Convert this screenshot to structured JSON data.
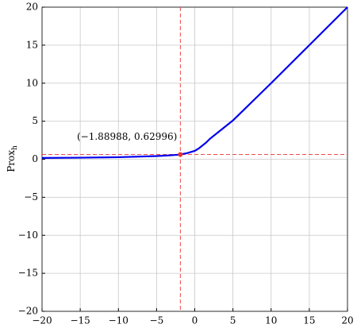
{
  "chart_data": {
    "type": "line",
    "ylabel": "Prox",
    "ylabel_subscript": "h",
    "x": [
      -20,
      -15,
      -10,
      -5,
      -4,
      -3,
      -2,
      -1,
      0,
      0.5,
      1,
      1.5,
      2,
      3,
      5,
      10,
      15,
      20
    ],
    "series": [
      {
        "color": "#0000ee",
        "values": [
          0.17,
          0.2,
          0.27,
          0.42,
          0.47,
          0.53,
          0.61,
          0.8,
          1.1,
          1.4,
          1.8,
          2.2,
          2.7,
          3.5,
          5.1,
          10,
          15,
          20
        ]
      }
    ],
    "annotation": {
      "label": "(−1.88988, 0.62996)",
      "x": -1.88988,
      "y": 0.62996,
      "color": "#ee3333"
    },
    "xlim": [
      -20,
      20
    ],
    "ylim": [
      -20,
      20
    ],
    "xticks": [
      {
        "value": -20,
        "label": "−20"
      },
      {
        "value": -15,
        "label": "−15"
      },
      {
        "value": -10,
        "label": "−10"
      },
      {
        "value": -5,
        "label": "−5"
      },
      0,
      5,
      10,
      15,
      20
    ],
    "yticks": [
      {
        "value": -20,
        "label": "−20"
      },
      {
        "value": -15,
        "label": "−15"
      },
      {
        "value": -10,
        "label": "−10"
      },
      {
        "value": -5,
        "label": "−5"
      },
      0,
      5,
      10,
      15,
      20
    ],
    "grid": true
  }
}
